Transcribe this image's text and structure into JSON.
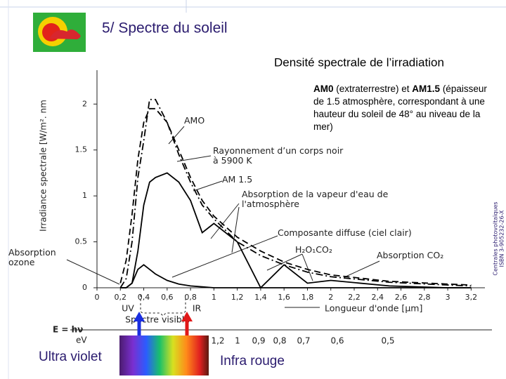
{
  "slide": {
    "title": "5/ Spectre du soleil",
    "heading": "Densité spectrale de l’irradiation",
    "note": [
      "AM0",
      " (extraterrestre) et ",
      "AM1.5",
      " (épaisseur de 1.5 atmosphère, correspondant à une hauteur du soleil de 48° au niveau de la mer)"
    ],
    "side_note": [
      "Centrales photovoltaïques",
      "ISBN 3-905232-26-X"
    ],
    "uv_label": "Ultra violet",
    "ir_label": "Infra rouge"
  },
  "chart_data": {
    "type": "line",
    "y_label": "Irradiance spectrale [W/m². nm",
    "x_label": "Longueur d'onde [µm]",
    "x": [
      0.2,
      0.25,
      0.3,
      0.35,
      0.4,
      0.45,
      0.5,
      0.6,
      0.7,
      0.8,
      0.9,
      1.0,
      1.2,
      1.4,
      1.6,
      1.8,
      2.0,
      2.5,
      3.0,
      3.2
    ],
    "series": [
      {
        "name": "AMO",
        "color": "#000000",
        "line_style": "dashdot",
        "values": [
          0,
          0.1,
          0.5,
          1.2,
          1.6,
          2.05,
          2.05,
          1.8,
          1.45,
          1.15,
          0.9,
          0.75,
          0.5,
          0.35,
          0.25,
          0.17,
          0.12,
          0.06,
          0.03,
          0.02
        ]
      },
      {
        "name": "Rayonnement d’un corps noir à 5900 K",
        "color": "#000000",
        "line_style": "dashed",
        "values": [
          0.05,
          0.3,
          0.8,
          1.4,
          1.8,
          1.95,
          1.95,
          1.8,
          1.5,
          1.2,
          0.95,
          0.78,
          0.55,
          0.4,
          0.28,
          0.2,
          0.14,
          0.07,
          0.04,
          0.03
        ]
      },
      {
        "name": "AM 1.5",
        "color": "#000000",
        "line_style": "solid",
        "values": [
          0,
          0,
          0.05,
          0.4,
          0.9,
          1.15,
          1.2,
          1.25,
          1.15,
          0.95,
          0.6,
          0.7,
          0.5,
          0,
          0.25,
          0.05,
          0.08,
          0.02,
          0,
          0
        ]
      },
      {
        "name": "Composante diffuse (ciel clair)",
        "color": "#000000",
        "line_style": "solid",
        "values": [
          0,
          0,
          0.05,
          0.2,
          0.25,
          0.2,
          0.15,
          0.08,
          0.04,
          0.02,
          0.01,
          0,
          0,
          0,
          0,
          0,
          0,
          0,
          0,
          0
        ]
      }
    ],
    "annotations": [
      "Absorption de la vapeur d'eau de l'atmosphère",
      "H₂O₁CO₂",
      "Absorption CO₂",
      "Absorption ozone"
    ],
    "xlim": [
      0,
      3.3
    ],
    "ylim": [
      0,
      2.3
    ],
    "xticks": [
      0,
      {
        "value": 0.2,
        "label": "0,2"
      },
      {
        "value": 0.4,
        "label": "0,4"
      },
      {
        "value": 0.6,
        "label": "0,6"
      },
      {
        "value": 0.8,
        "label": "0,8"
      },
      1,
      {
        "value": 1.2,
        "label": "1,2"
      },
      {
        "value": 1.4,
        "label": "1,4"
      },
      {
        "value": 1.6,
        "label": "1,6"
      },
      {
        "value": 1.8,
        "label": "1,8"
      },
      2,
      {
        "value": 2.2,
        "label": "2,2"
      },
      {
        "value": 2.4,
        "label": "2,4"
      },
      {
        "value": 2.6,
        "label": "2,6"
      },
      {
        "value": 2.8,
        "label": "2,8"
      },
      3,
      {
        "value": 3.2,
        "label": "3,2"
      }
    ],
    "yticks": [
      0,
      0.5,
      1,
      1.5,
      2
    ],
    "energy_axis": {
      "label": "E = hν",
      "unit": "eV",
      "ticks": [
        "1,2",
        "1",
        "0,9",
        "0,8",
        "0,7",
        "0,6",
        "0,5"
      ]
    },
    "band_labels": {
      "uv": "UV",
      "ir": "IR",
      "visible": "Spectre visible"
    }
  }
}
